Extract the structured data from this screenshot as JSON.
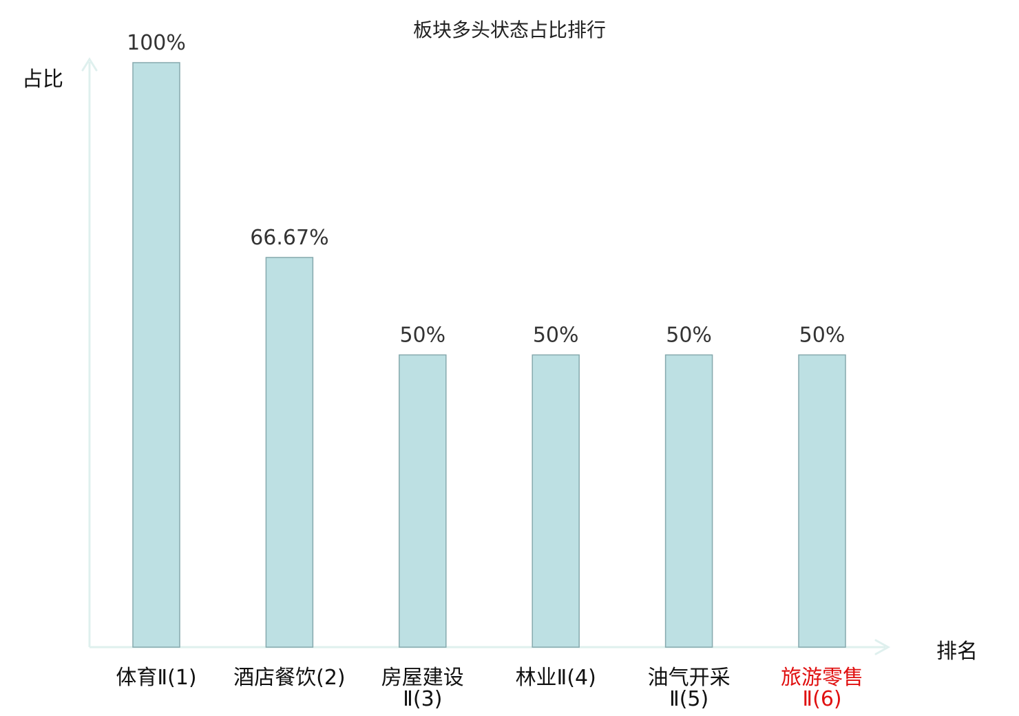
{
  "chart_data": {
    "type": "bar",
    "title": "板块多头状态占比排行",
    "xlabel": "排名",
    "ylabel": "占比",
    "categories": [
      [
        "体育Ⅱ(1)"
      ],
      [
        "酒店餐饮(2)"
      ],
      [
        "房屋建设",
        "Ⅱ(3)"
      ],
      [
        "林业Ⅱ(4)"
      ],
      [
        "油气开采",
        "Ⅱ(5)"
      ],
      [
        "旅游零售",
        "Ⅱ(6)"
      ]
    ],
    "values": [
      100,
      66.67,
      50,
      50,
      50,
      50
    ],
    "data_labels": [
      "100%",
      "66.67%",
      "50%",
      "50%",
      "50%",
      "50%"
    ],
    "ylim": [
      0,
      100
    ],
    "grid": false,
    "highlight_index": 5
  },
  "colors": {
    "bar_fill": "#bde0e3",
    "bar_stroke": "#86a9ad",
    "axis": "#dff0ee",
    "label_default": "#111111",
    "label_highlight": "#e01010",
    "value_text": "#333333"
  }
}
